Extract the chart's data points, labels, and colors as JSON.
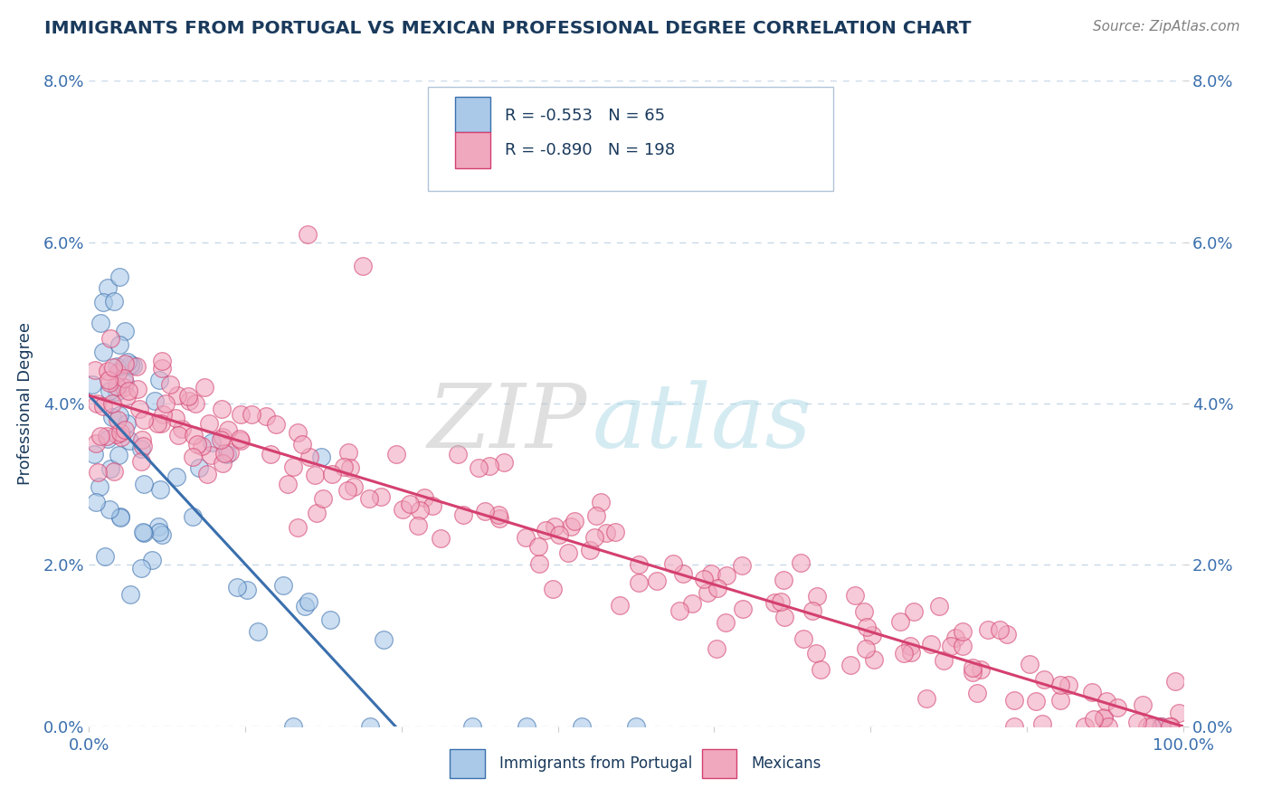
{
  "title": "IMMIGRANTS FROM PORTUGAL VS MEXICAN PROFESSIONAL DEGREE CORRELATION CHART",
  "source_text": "Source: ZipAtlas.com",
  "ylabel": "Professional Degree",
  "x_min": 0.0,
  "x_max": 100.0,
  "y_min": 0.0,
  "y_max": 8.0,
  "y_tick_values": [
    0.0,
    2.0,
    4.0,
    6.0,
    8.0
  ],
  "legend_entries": [
    {
      "label": "Immigrants from Portugal",
      "R": "-0.553",
      "N": "65",
      "scatter_color": "#aac9e8",
      "line_color": "#3a6fad"
    },
    {
      "label": "Mexicans",
      "R": "-0.890",
      "N": "198",
      "scatter_color": "#f0a8bf",
      "line_color": "#d44070"
    }
  ],
  "blue_line_start_x": 0.0,
  "blue_line_start_y": 4.1,
  "blue_line_end_x": 28.0,
  "blue_line_end_y": 0.0,
  "pink_line_start_x": 0.0,
  "pink_line_start_y": 4.1,
  "pink_line_end_x": 100.0,
  "pink_line_end_y": 0.0,
  "watermark_zip_color": "#c0c0c0",
  "watermark_atlas_color": "#add8e6",
  "background_color": "#ffffff",
  "grid_color": "#c8d8e8",
  "title_color": "#1a3a5c",
  "source_color": "#808080",
  "axis_label_color": "#1a3a5c",
  "tick_color": "#3a6fad"
}
